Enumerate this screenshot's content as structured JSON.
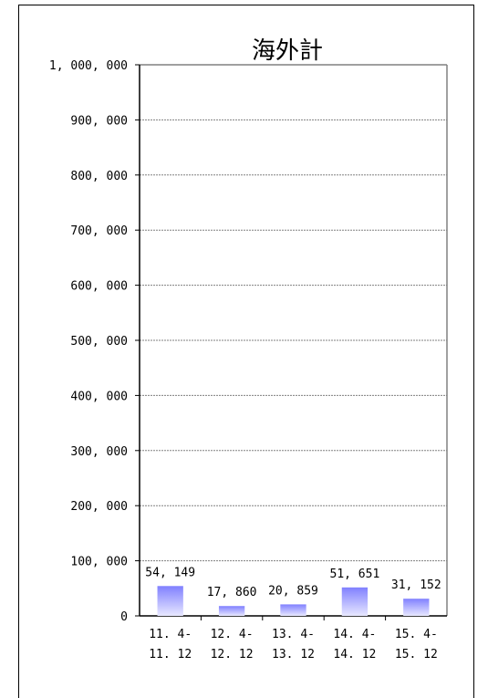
{
  "chart_data": {
    "type": "bar",
    "title": "海外計",
    "xlabel": "",
    "ylabel": "",
    "ylim": [
      0,
      1000000
    ],
    "yticks": [
      0,
      100000,
      200000,
      300000,
      400000,
      500000,
      600000,
      700000,
      800000,
      900000,
      1000000
    ],
    "ytick_labels": [
      "0",
      "100, 000",
      "200, 000",
      "300, 000",
      "400, 000",
      "500, 000",
      "600, 000",
      "700, 000",
      "800, 000",
      "900, 000",
      "1, 000, 000"
    ],
    "categories": [
      [
        "11. 4-",
        "11. 12"
      ],
      [
        "12. 4-",
        "12. 12"
      ],
      [
        "13. 4-",
        "13. 12"
      ],
      [
        "14. 4-",
        "14. 12"
      ],
      [
        "15. 4-",
        "15. 12"
      ]
    ],
    "values": [
      54149,
      17860,
      20859,
      51651,
      31152
    ],
    "value_labels": [
      "54, 149",
      "17, 860",
      "20, 859",
      "51, 651",
      "31, 152"
    ],
    "grid": true,
    "colors": {
      "bar_top": "#8080ff",
      "bar_bottom": "#e8e8ff",
      "grid": "#808080",
      "axis": "#000000",
      "plot_border": "#808080"
    }
  }
}
